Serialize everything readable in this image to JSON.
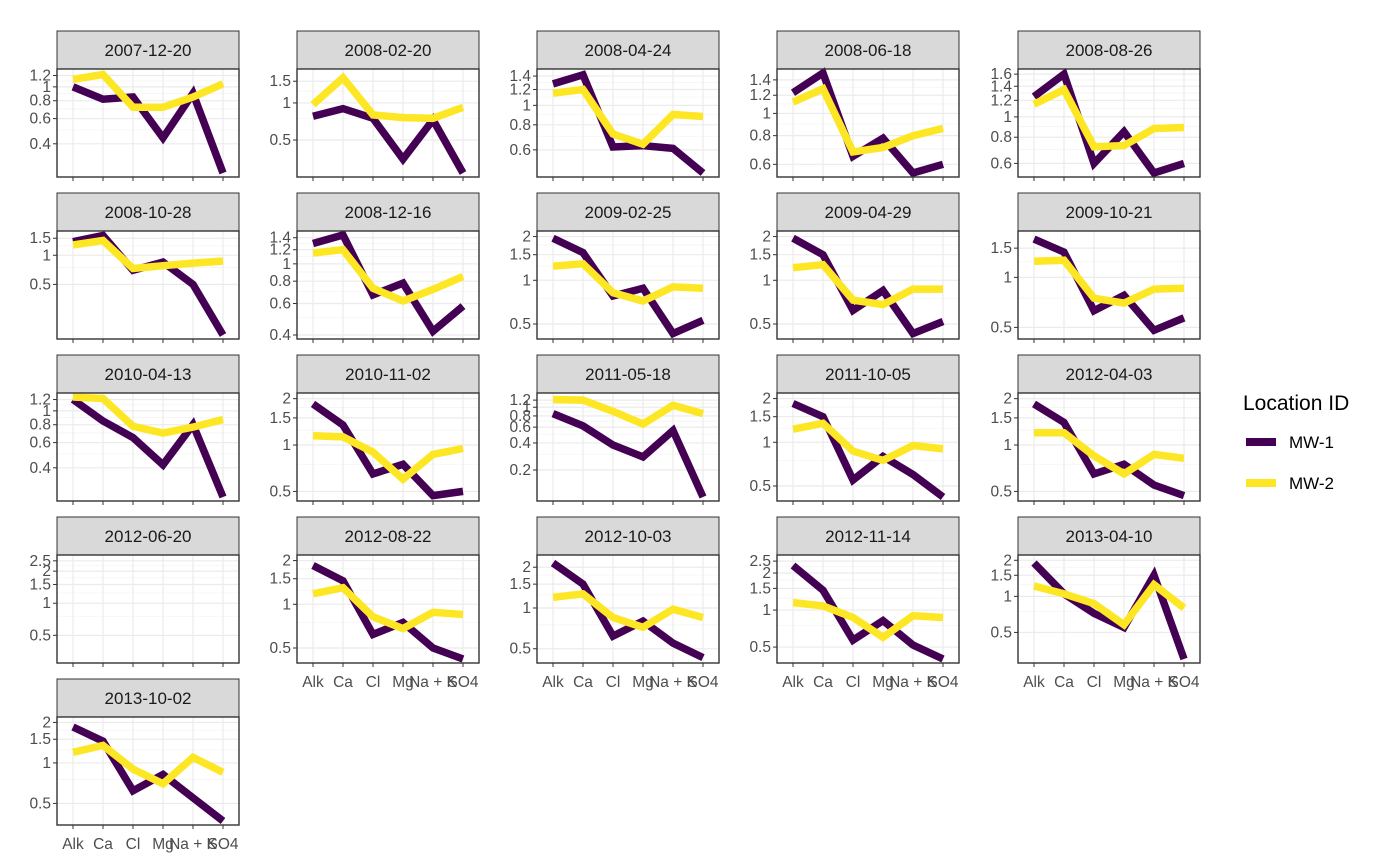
{
  "chart_data": {
    "type": "line",
    "facet_layout": "wrap",
    "x_categories": [
      "Alk",
      "Ca",
      "Cl",
      "Mg",
      "Na + K",
      "SO4"
    ],
    "y_scale": "log",
    "grid": true,
    "legend": {
      "title": "Location ID",
      "position": "right",
      "entries": [
        {
          "name": "MW-1",
          "color": "#440154"
        },
        {
          "name": "MW-2",
          "color": "#fde725"
        }
      ]
    },
    "facets": [
      {
        "title": "2007-12-20",
        "y_ticks": [
          0.4,
          0.6,
          0.8,
          1,
          1.2
        ],
        "ylim": [
          0.25,
          1.25
        ],
        "series": [
          {
            "name": "MW-1",
            "values": [
              1.0,
              0.82,
              0.85,
              0.44,
              0.9,
              0.25
            ]
          },
          {
            "name": "MW-2",
            "values": [
              1.13,
              1.22,
              0.72,
              0.72,
              0.85,
              1.05
            ]
          }
        ]
      },
      {
        "title": "2008-02-20",
        "y_ticks": [
          0.5,
          1,
          1.5
        ],
        "ylim": [
          0.27,
          1.75
        ],
        "series": [
          {
            "name": "MW-1",
            "values": [
              0.78,
              0.9,
              0.75,
              0.35,
              0.73,
              0.27
            ]
          },
          {
            "name": "MW-2",
            "values": [
              0.97,
              1.6,
              0.8,
              0.76,
              0.75,
              0.92
            ]
          }
        ]
      },
      {
        "title": "2008-04-24",
        "y_ticks": [
          0.6,
          0.8,
          1,
          1.2,
          1.4
        ],
        "ylim": [
          0.46,
          1.45
        ],
        "series": [
          {
            "name": "MW-1",
            "values": [
              1.28,
              1.42,
              0.62,
              0.63,
              0.61,
              0.46
            ]
          },
          {
            "name": "MW-2",
            "values": [
              1.15,
              1.2,
              0.72,
              0.64,
              0.9,
              0.88
            ]
          }
        ]
      },
      {
        "title": "2008-06-18",
        "y_ticks": [
          0.6,
          0.8,
          1,
          1.2,
          1.4
        ],
        "ylim": [
          0.55,
          1.5
        ],
        "series": [
          {
            "name": "MW-1",
            "values": [
              1.23,
              1.5,
              0.65,
              0.78,
              0.55,
              0.6
            ]
          },
          {
            "name": "MW-2",
            "values": [
              1.12,
              1.28,
              0.68,
              0.71,
              0.8,
              0.86
            ]
          }
        ]
      },
      {
        "title": "2008-08-26",
        "y_ticks": [
          0.6,
          0.8,
          1,
          1.2,
          1.4,
          1.6
        ],
        "ylim": [
          0.54,
          1.62
        ],
        "series": [
          {
            "name": "MW-1",
            "values": [
              1.25,
              1.6,
              0.6,
              0.85,
              0.54,
              0.6
            ]
          },
          {
            "name": "MW-2",
            "values": [
              1.15,
              1.35,
              0.72,
              0.73,
              0.88,
              0.89
            ]
          }
        ]
      },
      {
        "title": "2008-10-28",
        "y_ticks": [
          0.5,
          1,
          1.5
        ],
        "ylim": [
          0.15,
          1.62
        ],
        "series": [
          {
            "name": "MW-1",
            "values": [
              1.38,
              1.6,
              0.7,
              0.85,
              0.5,
              0.15
            ]
          },
          {
            "name": "MW-2",
            "values": [
              1.28,
              1.42,
              0.73,
              0.78,
              0.83,
              0.87
            ]
          }
        ]
      },
      {
        "title": "2008-12-16",
        "y_ticks": [
          0.4,
          0.6,
          0.8,
          1,
          1.2,
          1.4
        ],
        "ylim": [
          0.4,
          1.45
        ],
        "series": [
          {
            "name": "MW-1",
            "values": [
              1.3,
              1.45,
              0.67,
              0.78,
              0.42,
              0.58
            ]
          },
          {
            "name": "MW-2",
            "values": [
              1.15,
              1.2,
              0.73,
              0.62,
              0.72,
              0.85
            ]
          }
        ]
      },
      {
        "title": "2009-02-25",
        "y_ticks": [
          0.5,
          1,
          1.5,
          2
        ],
        "ylim": [
          0.42,
          2.05
        ],
        "series": [
          {
            "name": "MW-1",
            "values": [
              1.95,
              1.55,
              0.78,
              0.88,
              0.43,
              0.53
            ]
          },
          {
            "name": "MW-2",
            "values": [
              1.25,
              1.3,
              0.82,
              0.72,
              0.9,
              0.88
            ]
          }
        ]
      },
      {
        "title": "2009-04-29",
        "y_ticks": [
          0.5,
          1,
          1.5,
          2
        ],
        "ylim": [
          0.42,
          2.05
        ],
        "series": [
          {
            "name": "MW-1",
            "values": [
              1.95,
              1.5,
              0.62,
              0.85,
              0.43,
              0.52
            ]
          },
          {
            "name": "MW-2",
            "values": [
              1.22,
              1.28,
              0.73,
              0.68,
              0.87,
              0.87
            ]
          }
        ]
      },
      {
        "title": "2009-10-21",
        "y_ticks": [
          0.5,
          1,
          1.5
        ],
        "ylim": [
          0.45,
          1.8
        ],
        "series": [
          {
            "name": "MW-1",
            "values": [
              1.7,
              1.42,
              0.63,
              0.78,
              0.48,
              0.57
            ]
          },
          {
            "name": "MW-2",
            "values": [
              1.25,
              1.27,
              0.75,
              0.7,
              0.85,
              0.86
            ]
          }
        ]
      },
      {
        "title": "2010-04-13",
        "y_ticks": [
          0.4,
          0.6,
          0.8,
          1,
          1.2
        ],
        "ylim": [
          0.25,
          1.25
        ],
        "series": [
          {
            "name": "MW-1",
            "values": [
              1.2,
              0.85,
              0.65,
              0.42,
              0.8,
              0.25
            ]
          },
          {
            "name": "MW-2",
            "values": [
              1.25,
              1.22,
              0.78,
              0.7,
              0.77,
              0.87
            ]
          }
        ]
      },
      {
        "title": "2010-11-02",
        "y_ticks": [
          0.5,
          1,
          1.5,
          2
        ],
        "ylim": [
          0.46,
          2.05
        ],
        "series": [
          {
            "name": "MW-1",
            "values": [
              1.85,
              1.35,
              0.65,
              0.75,
              0.47,
              0.5
            ]
          },
          {
            "name": "MW-2",
            "values": [
              1.15,
              1.13,
              0.9,
              0.6,
              0.87,
              0.95
            ]
          }
        ]
      },
      {
        "title": "2011-05-18",
        "y_ticks": [
          0.2,
          0.4,
          0.6,
          0.8,
          1,
          1.2
        ],
        "ylim": [
          0.1,
          1.3
        ],
        "series": [
          {
            "name": "MW-1",
            "values": [
              0.85,
              0.62,
              0.38,
              0.28,
              0.55,
              0.1
            ]
          },
          {
            "name": "MW-2",
            "values": [
              1.22,
              1.2,
              0.9,
              0.65,
              1.05,
              0.85
            ]
          }
        ]
      },
      {
        "title": "2011-10-05",
        "y_ticks": [
          0.5,
          1,
          1.5,
          2
        ],
        "ylim": [
          0.42,
          2.05
        ],
        "series": [
          {
            "name": "MW-1",
            "values": [
              1.85,
              1.5,
              0.55,
              0.8,
              0.6,
              0.42
            ]
          },
          {
            "name": "MW-2",
            "values": [
              1.23,
              1.35,
              0.87,
              0.75,
              0.95,
              0.9
            ]
          }
        ]
      },
      {
        "title": "2012-04-03",
        "y_ticks": [
          0.5,
          1,
          1.5,
          2
        ],
        "ylim": [
          0.46,
          2.05
        ],
        "series": [
          {
            "name": "MW-1",
            "values": [
              1.85,
              1.4,
              0.65,
              0.75,
              0.55,
              0.47
            ]
          },
          {
            "name": "MW-2",
            "values": [
              1.2,
              1.2,
              0.85,
              0.65,
              0.87,
              0.82
            ]
          }
        ]
      },
      {
        "title": "2012-06-20",
        "y_ticks": [
          0.5,
          1,
          1.5,
          2,
          2.5
        ],
        "ylim": [
          0.3,
          2.6
        ],
        "series": []
      },
      {
        "title": "2012-08-22",
        "y_ticks": [
          0.5,
          1,
          1.5,
          2
        ],
        "ylim": [
          0.42,
          2.05
        ],
        "series": [
          {
            "name": "MW-1",
            "values": [
              1.85,
              1.45,
              0.62,
              0.75,
              0.5,
              0.42
            ]
          },
          {
            "name": "MW-2",
            "values": [
              1.18,
              1.3,
              0.82,
              0.68,
              0.88,
              0.85
            ]
          }
        ]
      },
      {
        "title": "2012-10-03",
        "y_ticks": [
          0.5,
          1,
          1.5,
          2
        ],
        "ylim": [
          0.42,
          2.3
        ],
        "series": [
          {
            "name": "MW-1",
            "values": [
              2.15,
              1.5,
              0.62,
              0.8,
              0.55,
              0.43
            ]
          },
          {
            "name": "MW-2",
            "values": [
              1.2,
              1.27,
              0.85,
              0.72,
              0.98,
              0.85
            ]
          }
        ]
      },
      {
        "title": "2012-11-14",
        "y_ticks": [
          0.5,
          1,
          1.5,
          2,
          2.5
        ],
        "ylim": [
          0.4,
          2.6
        ],
        "series": [
          {
            "name": "MW-1",
            "values": [
              2.3,
              1.45,
              0.57,
              0.82,
              0.52,
              0.4
            ]
          },
          {
            "name": "MW-2",
            "values": [
              1.15,
              1.08,
              0.87,
              0.6,
              0.9,
              0.87
            ]
          }
        ]
      },
      {
        "title": "2013-04-10",
        "y_ticks": [
          0.5,
          1,
          1.5,
          2
        ],
        "ylim": [
          0.3,
          2.05
        ],
        "series": [
          {
            "name": "MW-1",
            "values": [
              1.9,
              1.05,
              0.72,
              0.55,
              1.5,
              0.3
            ]
          },
          {
            "name": "MW-2",
            "values": [
              1.22,
              1.05,
              0.87,
              0.58,
              1.25,
              0.8
            ]
          }
        ]
      },
      {
        "title": "2013-10-02",
        "y_ticks": [
          0.5,
          1,
          1.5,
          2
        ],
        "ylim": [
          0.37,
          2.05
        ],
        "series": [
          {
            "name": "MW-1",
            "values": [
              1.85,
              1.45,
              0.62,
              0.82,
              0.55,
              0.37
            ]
          },
          {
            "name": "MW-2",
            "values": [
              1.2,
              1.35,
              0.9,
              0.7,
              1.1,
              0.85
            ]
          }
        ]
      }
    ]
  }
}
